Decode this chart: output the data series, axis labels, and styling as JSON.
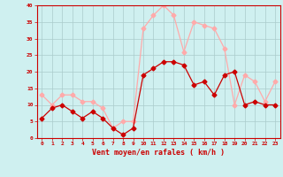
{
  "hours": [
    0,
    1,
    2,
    3,
    4,
    5,
    6,
    7,
    8,
    9,
    10,
    11,
    12,
    13,
    14,
    15,
    16,
    17,
    18,
    19,
    20,
    21,
    22,
    23
  ],
  "wind_avg": [
    6,
    9,
    10,
    8,
    6,
    8,
    6,
    3,
    1,
    3,
    19,
    21,
    23,
    23,
    22,
    16,
    17,
    13,
    19,
    20,
    10,
    11,
    10,
    10
  ],
  "wind_gust": [
    13,
    10,
    13,
    13,
    11,
    11,
    9,
    3,
    5,
    5,
    33,
    37,
    40,
    37,
    26,
    35,
    34,
    33,
    27,
    10,
    19,
    17,
    11,
    17
  ],
  "avg_color": "#cc0000",
  "gust_color": "#ffaaaa",
  "bg_color": "#cff0f0",
  "grid_color": "#aacccc",
  "xlabel": "Vent moyen/en rafales ( km/h )",
  "xlabel_color": "#cc0000",
  "tick_color": "#cc0000",
  "ylim": [
    0,
    40
  ],
  "yticks": [
    0,
    5,
    10,
    15,
    20,
    25,
    30,
    35,
    40
  ],
  "spine_color": "#cc0000",
  "marker_size": 2.5,
  "linewidth": 0.9
}
